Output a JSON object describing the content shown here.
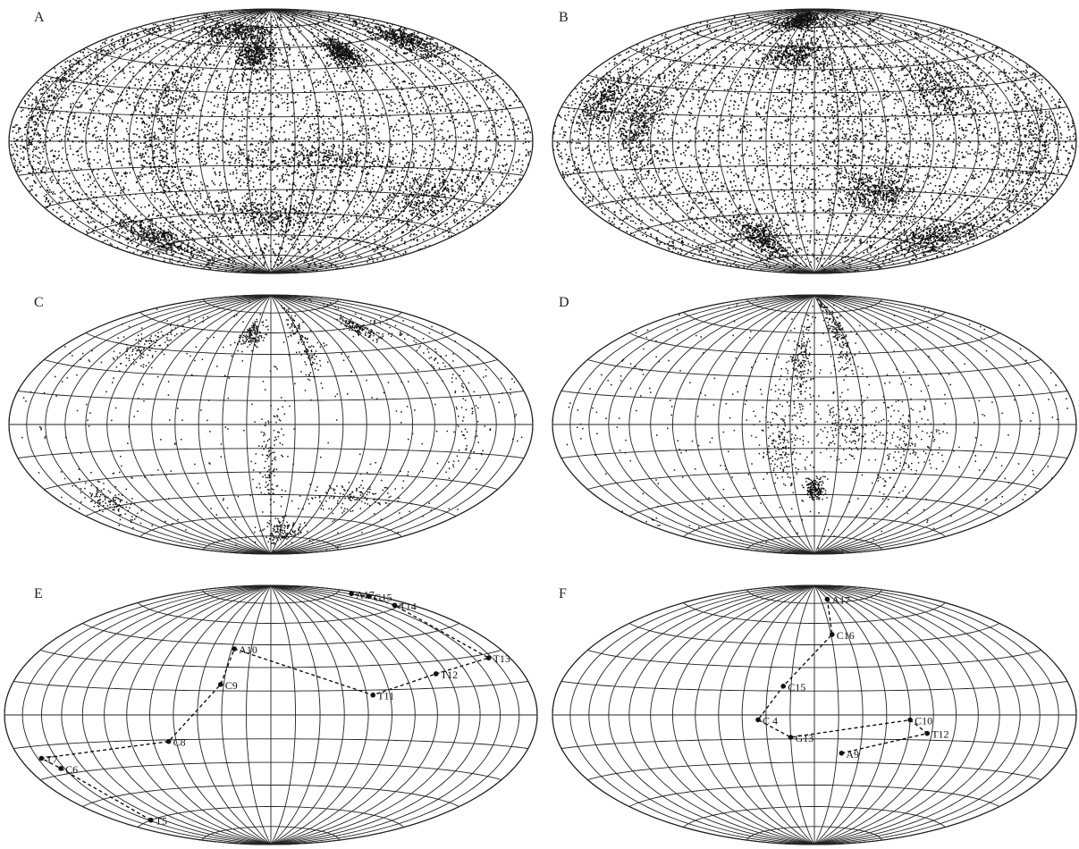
{
  "panels": [
    {
      "label": "A",
      "kind": "dense-scatter",
      "nodes": []
    },
    {
      "label": "B",
      "kind": "dense-scatter",
      "nodes": []
    },
    {
      "label": "C",
      "kind": "sparse-scatter",
      "nodes": []
    },
    {
      "label": "D",
      "kind": "sparse-scatter",
      "nodes": []
    },
    {
      "label": "E",
      "kind": "path",
      "nodes": [
        "T5",
        "C6",
        "T7",
        "C8",
        "C9",
        "A10",
        "T11",
        "T12",
        "T13",
        "T14",
        "G15",
        "A17"
      ],
      "lonlat": [
        [
          -148,
          -60
        ],
        [
          -153,
          -27
        ],
        [
          -162,
          -21
        ],
        [
          -65,
          -16
        ],
        [
          -32,
          19
        ],
        [
          -28,
          42
        ],
        [
          64,
          12
        ],
        [
          112,
          23
        ],
        [
          162,
          28
        ],
        [
          164,
          61
        ],
        [
          172,
          68
        ],
        [
          168,
          72
        ]
      ]
    },
    {
      "label": "F",
      "kind": "path",
      "nodes": [
        "A9",
        "T12",
        "C10",
        "G13",
        "C 4",
        "C15",
        "C16",
        "A17"
      ],
      "lonlat": [
        [
          18,
          -24
        ],
        [
          72,
          -11
        ],
        [
          60,
          -3
        ],
        [
          -15,
          -14
        ],
        [
          -35,
          -3
        ],
        [
          -20,
          18
        ],
        [
          16,
          52
        ],
        [
          30,
          78
        ]
      ]
    }
  ]
}
